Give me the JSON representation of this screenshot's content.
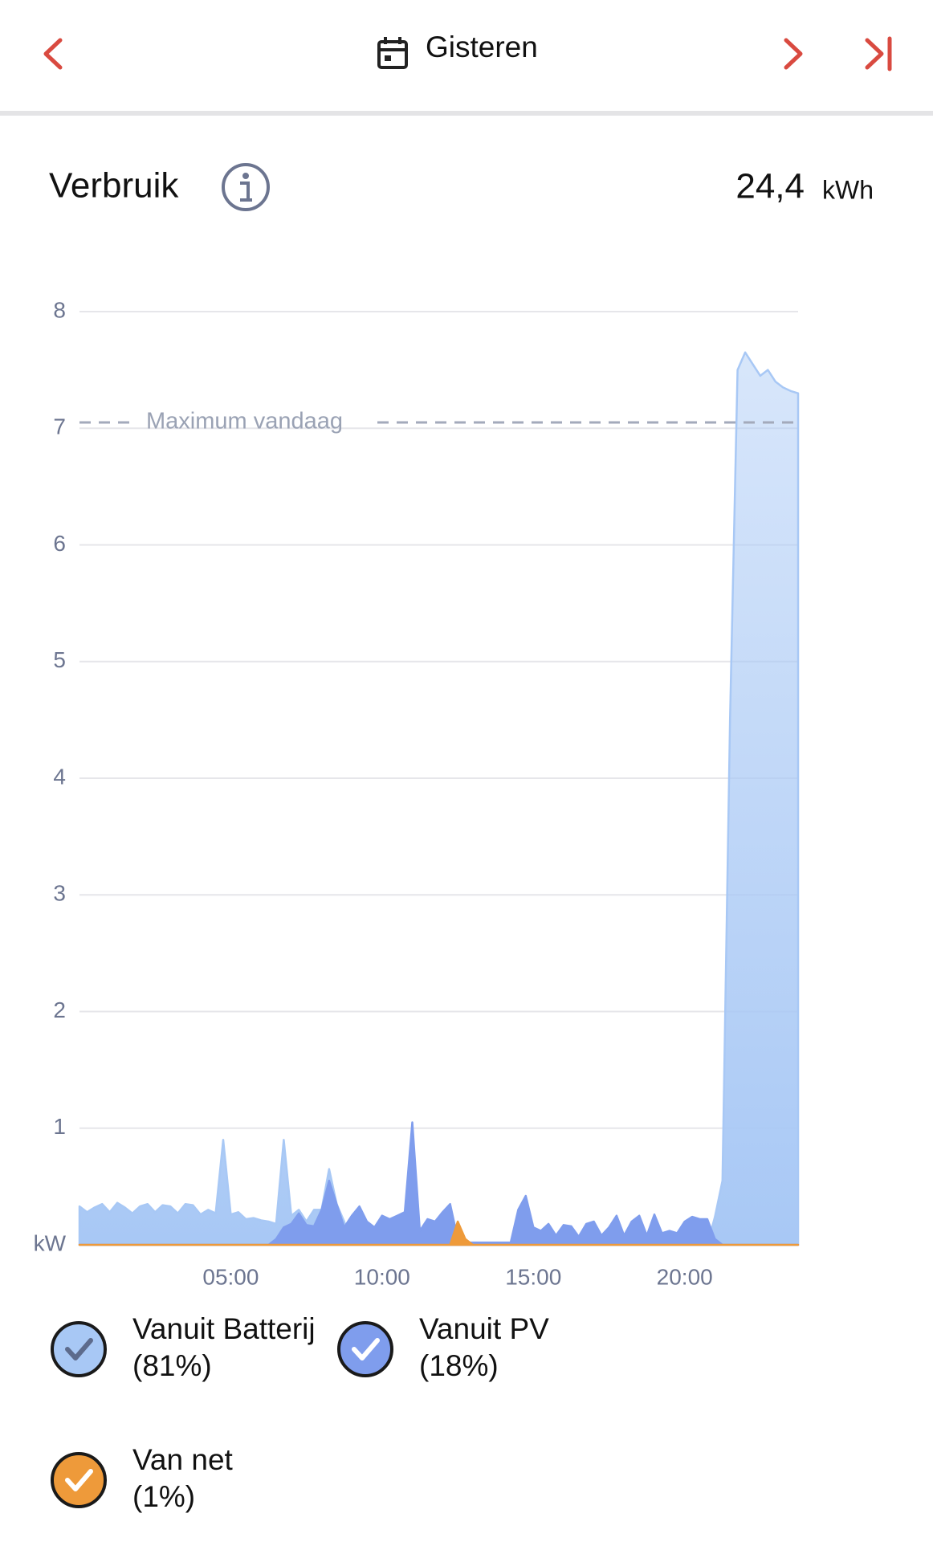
{
  "header": {
    "title": "Gisteren"
  },
  "summary": {
    "title": "Verbruik",
    "total": "24,4",
    "unit": "kWh"
  },
  "chart_data": {
    "type": "area",
    "x": [
      0,
      0.25,
      0.5,
      0.75,
      1,
      1.25,
      1.5,
      1.75,
      2,
      2.25,
      2.5,
      2.75,
      3,
      3.25,
      3.5,
      3.75,
      4,
      4.25,
      4.5,
      4.75,
      5,
      5.25,
      5.5,
      5.75,
      6,
      6.25,
      6.5,
      6.75,
      7,
      7.25,
      7.5,
      7.75,
      8,
      8.25,
      8.5,
      8.75,
      9,
      9.25,
      9.5,
      9.75,
      10,
      10.25,
      10.5,
      10.75,
      11,
      11.25,
      11.5,
      11.75,
      12,
      12.25,
      12.5,
      12.75,
      13,
      13.25,
      13.5,
      13.75,
      14,
      14.25,
      14.5,
      14.75,
      15,
      15.25,
      15.5,
      15.75,
      16,
      16.25,
      16.5,
      16.75,
      17,
      17.25,
      17.5,
      17.75,
      18,
      18.25,
      18.5,
      18.75,
      19,
      19.25,
      19.5,
      19.75,
      20,
      20.25,
      20.5,
      20.75,
      21,
      21.25,
      21.5,
      21.75,
      22,
      22.25,
      22.5,
      22.75,
      23,
      23.25,
      23.5,
      23.75
    ],
    "xlim": [
      0,
      23.75
    ],
    "xticks": [
      {
        "value": 5,
        "label": "05:00"
      },
      {
        "value": 10,
        "label": "10:00"
      },
      {
        "value": 15,
        "label": "15:00"
      },
      {
        "value": 20,
        "label": "20:00"
      }
    ],
    "ylim": [
      0,
      8
    ],
    "yticks": [
      {
        "value": 0,
        "label": "kW"
      },
      1,
      2,
      3,
      4,
      5,
      6,
      7,
      8
    ],
    "grid": true,
    "max_line": {
      "value": 7.05,
      "label": "Maximum vandaag"
    },
    "series": [
      {
        "name": "Vanuit Batterij",
        "share": 81,
        "share_label": "(81%)",
        "color": "#a8c8f5",
        "values": [
          0.33,
          0.28,
          0.32,
          0.35,
          0.28,
          0.36,
          0.32,
          0.27,
          0.33,
          0.35,
          0.28,
          0.34,
          0.33,
          0.27,
          0.35,
          0.34,
          0.26,
          0.3,
          0.27,
          0.9,
          0.26,
          0.28,
          0.22,
          0.23,
          0.21,
          0.2,
          0.18,
          0.9,
          0.25,
          0.3,
          0.2,
          0.3,
          0.3,
          0.65,
          0.35,
          0.2,
          0,
          0,
          0,
          0,
          0,
          0,
          0,
          0,
          0,
          0,
          0,
          0,
          0,
          0,
          0,
          0,
          0,
          0,
          0,
          0,
          0,
          0,
          0,
          0,
          0,
          0,
          0,
          0,
          0,
          0,
          0,
          0,
          0,
          0,
          0,
          0,
          0,
          0,
          0,
          0,
          0,
          0,
          0,
          0,
          0,
          0,
          0,
          0,
          0.24,
          0.55,
          4.5,
          7.5,
          7.65,
          7.55,
          7.45,
          7.5,
          7.4,
          7.35,
          7.32,
          7.3
        ]
      },
      {
        "name": "Vanuit PV",
        "share": 18,
        "share_label": "(18%)",
        "color": "#7f9ded",
        "values": [
          0,
          0,
          0,
          0,
          0,
          0,
          0,
          0,
          0,
          0,
          0,
          0,
          0,
          0,
          0,
          0,
          0,
          0,
          0,
          0,
          0,
          0,
          0,
          0,
          0,
          0,
          0.05,
          0.15,
          0.18,
          0.27,
          0.17,
          0.16,
          0.3,
          0.55,
          0.35,
          0.15,
          0.25,
          0.33,
          0.2,
          0.15,
          0.25,
          0.22,
          0.25,
          0.28,
          1.05,
          0.12,
          0.22,
          0.2,
          0.28,
          0.35,
          0.05,
          0.02,
          0.02,
          0.02,
          0.02,
          0.02,
          0.02,
          0.02,
          0.3,
          0.42,
          0.15,
          0.12,
          0.18,
          0.08,
          0.17,
          0.16,
          0.07,
          0.18,
          0.2,
          0.08,
          0.15,
          0.25,
          0.08,
          0.2,
          0.25,
          0.08,
          0.26,
          0.1,
          0.12,
          0.1,
          0.2,
          0.24,
          0.22,
          0.22,
          0.05,
          0,
          0,
          0,
          0,
          0,
          0,
          0,
          0,
          0,
          0,
          0
        ]
      },
      {
        "name": "Van net",
        "share": 1,
        "share_label": "(1%)",
        "color": "#ee9a3a",
        "values": [
          0,
          0,
          0,
          0,
          0,
          0,
          0,
          0,
          0,
          0,
          0,
          0,
          0,
          0,
          0,
          0,
          0,
          0,
          0,
          0,
          0,
          0,
          0,
          0,
          0,
          0,
          0,
          0,
          0,
          0,
          0,
          0,
          0,
          0,
          0,
          0,
          0,
          0,
          0,
          0,
          0,
          0,
          0,
          0,
          0,
          0,
          0,
          0,
          0,
          0,
          0.2,
          0.05,
          0,
          0,
          0,
          0,
          0,
          0,
          0,
          0,
          0,
          0,
          0,
          0,
          0,
          0,
          0,
          0,
          0,
          0,
          0,
          0,
          0,
          0,
          0,
          0,
          0,
          0,
          0,
          0,
          0,
          0,
          0,
          0,
          0,
          0,
          0,
          0,
          0,
          0,
          0,
          0,
          0,
          0,
          0,
          0
        ]
      }
    ]
  }
}
